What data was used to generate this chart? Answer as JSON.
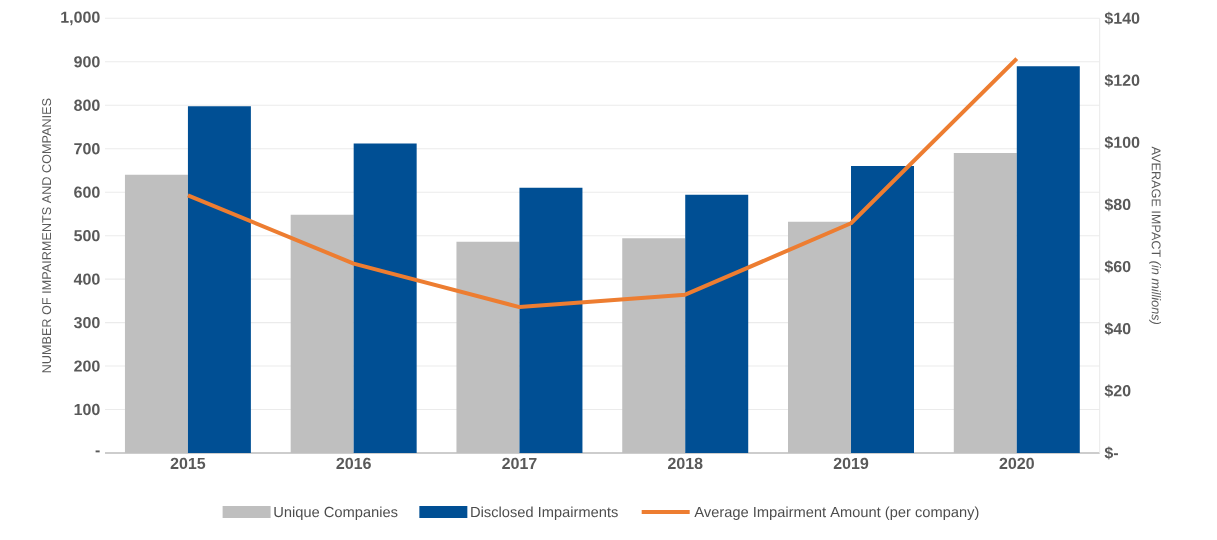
{
  "chart_data": {
    "type": "bar",
    "categories": [
      "2015",
      "2016",
      "2017",
      "2018",
      "2019",
      "2020"
    ],
    "series": [
      {
        "name": "Unique Companies",
        "color": "#bfbfbf",
        "values": [
          640,
          548,
          486,
          494,
          532,
          690
        ]
      },
      {
        "name": "Disclosed Impairments",
        "color": "#004f94",
        "values": [
          798,
          712,
          610,
          594,
          660,
          890
        ]
      },
      {
        "name": "Average Impairment Amount (per company)",
        "type": "line",
        "axis": "y2",
        "color": "#ed7d31",
        "values": [
          83,
          61,
          47,
          51,
          74,
          127
        ]
      }
    ],
    "ylabel": "NUMBER OF IMPAIRMENTS AND COMPANIES",
    "y2label": "AVERAGE IMPACT *(in millions)*",
    "ylim": [
      0,
      1000
    ],
    "yticks": [
      {
        "value": 0,
        "label": "-"
      },
      100,
      200,
      300,
      400,
      500,
      600,
      700,
      800,
      900,
      {
        "value": 1000,
        "label": "1,000"
      }
    ],
    "y2lim": [
      0,
      140
    ],
    "y2ticks": [
      {
        "value": 0,
        "label": "$-"
      },
      {
        "value": 20,
        "label": "$20"
      },
      {
        "value": 40,
        "label": "$40"
      },
      {
        "value": 60,
        "label": "$60"
      },
      {
        "value": 80,
        "label": "$80"
      },
      {
        "value": 100,
        "label": "$100"
      },
      {
        "value": 120,
        "label": "$120"
      },
      {
        "value": 140,
        "label": "$140"
      }
    ],
    "grid": "y",
    "legend": "bottom"
  }
}
